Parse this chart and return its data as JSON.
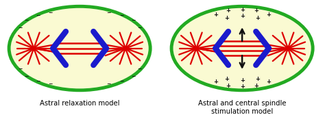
{
  "fig_width": 4.74,
  "fig_height": 1.68,
  "dpi": 100,
  "bg_color": "#ffffff",
  "cell_fill": "#FAFAD2",
  "cell_edge": "#22aa22",
  "cell_edge_width": 3.5,
  "spindle_color": "#dd0000",
  "blue_color": "#1a1acc",
  "sign_color": "#111111",
  "arrow_color": "#111111",
  "label1": "Astral relaxation model",
  "label2": "Astral and central spindle\nstimulation model",
  "label_fontsize": 7.2
}
